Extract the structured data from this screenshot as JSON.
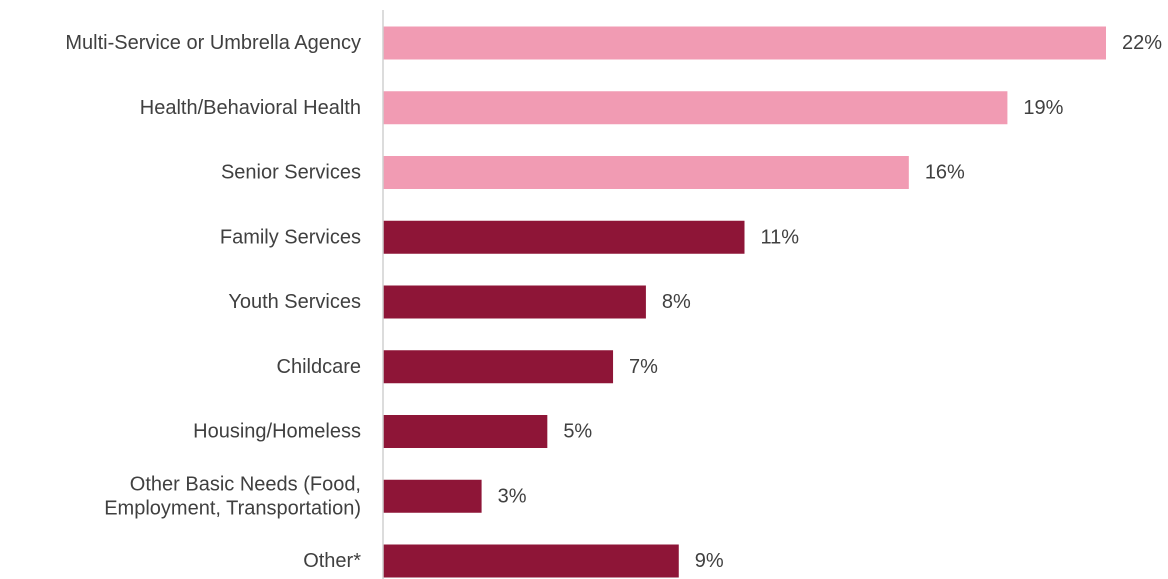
{
  "chart_data": {
    "type": "bar",
    "orientation": "horizontal",
    "categories": [
      [
        "Multi-Service or Umbrella Agency"
      ],
      [
        "Health/Behavioral Health"
      ],
      [
        "Senior Services"
      ],
      [
        "Family Services"
      ],
      [
        "Youth Services"
      ],
      [
        "Childcare"
      ],
      [
        "Housing/Homeless"
      ],
      [
        "Other Basic Needs (Food,",
        "Employment, Transportation)"
      ],
      [
        "Other*"
      ]
    ],
    "values": [
      22,
      19,
      16,
      11,
      8,
      7,
      5,
      3,
      9
    ],
    "value_labels": [
      "22%",
      "19%",
      "16%",
      "11%",
      "8%",
      "7%",
      "5%",
      "3%",
      "9%"
    ],
    "bar_colors": [
      "#f19bb3",
      "#f19bb3",
      "#f19bb3",
      "#8e1537",
      "#8e1537",
      "#8e1537",
      "#8e1537",
      "#8e1537",
      "#8e1537"
    ],
    "axis_color": "#d0d0d0",
    "xlim": [
      0,
      22
    ],
    "grid": false,
    "legend": "none"
  }
}
